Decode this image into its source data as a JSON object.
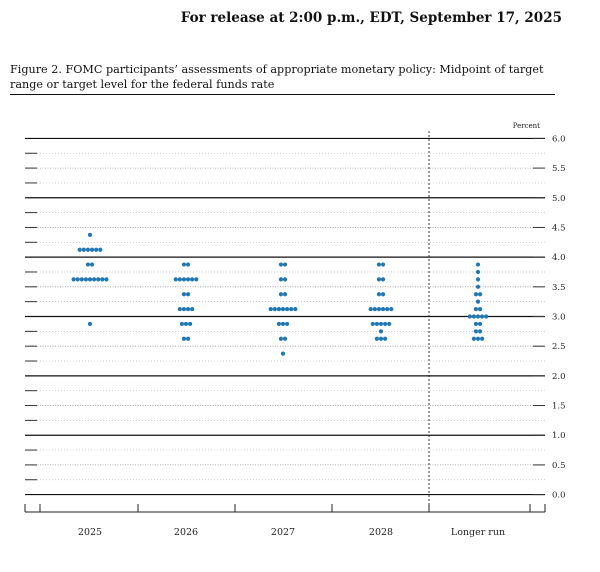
{
  "header": {
    "release_text": "For release at 2:00 p.m., EDT, September 17, 2025",
    "figure_title": "Figure 2. FOMC participants’ assessments of appropriate monetary policy: Midpoint of target range or target level for the federal funds rate"
  },
  "chart_data": {
    "type": "scatter",
    "subtype": "dot-plot",
    "unit_label": "Percent",
    "categories": [
      "2025",
      "2026",
      "2027",
      "2028",
      "Longer run"
    ],
    "ylim": [
      -0.125,
      6.125
    ],
    "y_ticks": [
      "6.0",
      "5.5",
      "5.0",
      "4.5",
      "4.0",
      "3.5",
      "3.0",
      "2.5",
      "2.0",
      "1.5",
      "1.0",
      "0.5",
      "0.0"
    ],
    "dot_color": "#1f77b4",
    "series": [
      {
        "category": "2025",
        "points": [
          {
            "y": 4.375,
            "count": 1
          },
          {
            "y": 4.125,
            "count": 6
          },
          {
            "y": 3.875,
            "count": 2
          },
          {
            "y": 3.625,
            "count": 9
          },
          {
            "y": 2.875,
            "count": 1
          }
        ]
      },
      {
        "category": "2026",
        "points": [
          {
            "y": 3.875,
            "count": 2
          },
          {
            "y": 3.625,
            "count": 6
          },
          {
            "y": 3.375,
            "count": 2
          },
          {
            "y": 3.125,
            "count": 4
          },
          {
            "y": 2.875,
            "count": 3
          },
          {
            "y": 2.625,
            "count": 2
          }
        ]
      },
      {
        "category": "2027",
        "points": [
          {
            "y": 3.875,
            "count": 2
          },
          {
            "y": 3.625,
            "count": 2
          },
          {
            "y": 3.375,
            "count": 2
          },
          {
            "y": 3.125,
            "count": 7
          },
          {
            "y": 2.875,
            "count": 3
          },
          {
            "y": 2.625,
            "count": 2
          },
          {
            "y": 2.375,
            "count": 1
          }
        ]
      },
      {
        "category": "2028",
        "points": [
          {
            "y": 3.875,
            "count": 2
          },
          {
            "y": 3.625,
            "count": 2
          },
          {
            "y": 3.375,
            "count": 2
          },
          {
            "y": 3.125,
            "count": 6
          },
          {
            "y": 2.875,
            "count": 5
          },
          {
            "y": 2.75,
            "count": 1
          },
          {
            "y": 2.625,
            "count": 3
          }
        ]
      },
      {
        "category": "Longer run",
        "points": [
          {
            "y": 3.875,
            "count": 1
          },
          {
            "y": 3.75,
            "count": 1
          },
          {
            "y": 3.625,
            "count": 1
          },
          {
            "y": 3.5,
            "count": 1
          },
          {
            "y": 3.375,
            "count": 2
          },
          {
            "y": 3.25,
            "count": 1
          },
          {
            "y": 3.125,
            "count": 2
          },
          {
            "y": 3.0,
            "count": 5
          },
          {
            "y": 2.875,
            "count": 2
          },
          {
            "y": 2.75,
            "count": 2
          },
          {
            "y": 2.625,
            "count": 3
          }
        ]
      }
    ]
  }
}
